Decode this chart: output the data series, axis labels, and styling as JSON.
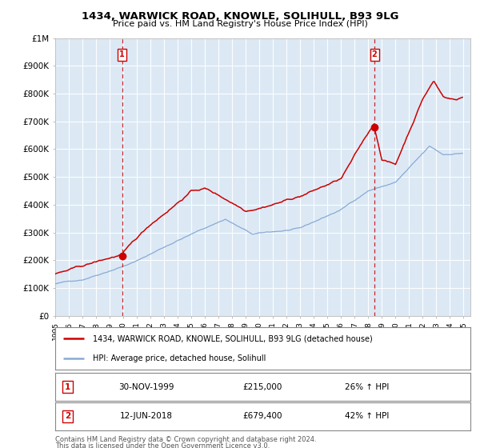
{
  "title": "1434, WARWICK ROAD, KNOWLE, SOLIHULL, B93 9LG",
  "subtitle": "Price paid vs. HM Land Registry's House Price Index (HPI)",
  "legend_property": "1434, WARWICK ROAD, KNOWLE, SOLIHULL, B93 9LG (detached house)",
  "legend_hpi": "HPI: Average price, detached house, Solihull",
  "sale1_date": "30-NOV-1999",
  "sale1_price": 215000,
  "sale1_label": "26% ↑ HPI",
  "sale2_date": "12-JUN-2018",
  "sale2_price": 679400,
  "sale2_label": "42% ↑ HPI",
  "footnote1": "Contains HM Land Registry data © Crown copyright and database right 2024.",
  "footnote2": "This data is licensed under the Open Government Licence v3.0.",
  "bg_color": "#dce9f5",
  "fig_bg": "#ffffff",
  "red_color": "#cc0000",
  "blue_color": "#88aad4",
  "grid_color": "#ffffff",
  "xmin": 1995.0,
  "xmax": 2025.5,
  "ymin": 0,
  "ymax": 1000000,
  "sale1_x": 1999.92,
  "sale2_x": 2018.45
}
